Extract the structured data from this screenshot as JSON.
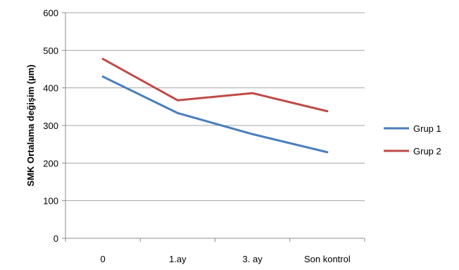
{
  "chart_data": {
    "type": "line",
    "categories": [
      "0",
      "1.ay",
      "3. ay",
      "Son kontrol"
    ],
    "series": [
      {
        "name": "Grup 1",
        "values": [
          430,
          333,
          277,
          229
        ],
        "color": "#4a7ebb"
      },
      {
        "name": "Grup 2",
        "values": [
          477,
          367,
          386,
          338
        ],
        "color": "#be4b48"
      }
    ],
    "title": "",
    "xlabel": "",
    "ylabel": "SMK Ortalama değişim (µm)",
    "ylim": [
      0,
      600
    ],
    "yticks": [
      0,
      100,
      200,
      300,
      400,
      500,
      600
    ],
    "grid": "horizontal",
    "legend": "right",
    "gridline_color": "#a6a6a6"
  }
}
